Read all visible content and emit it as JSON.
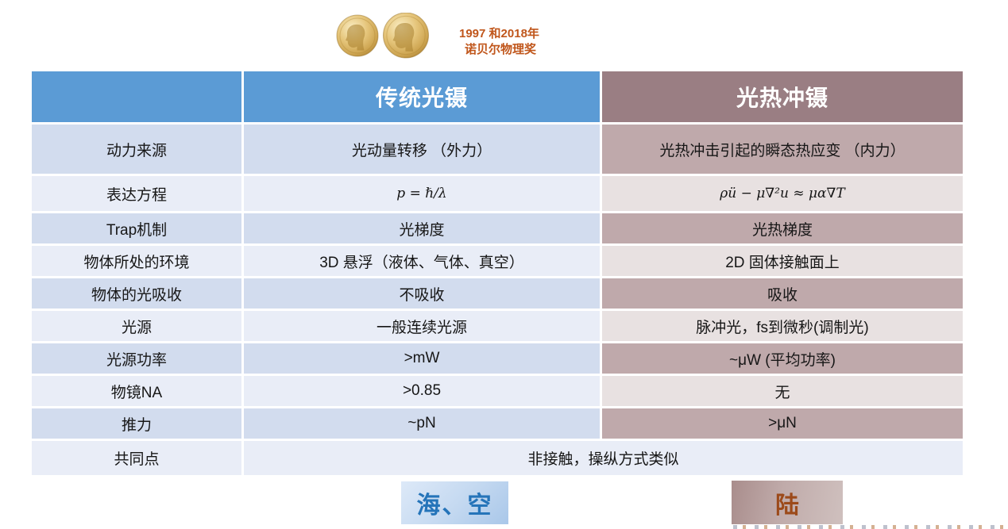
{
  "badge": {
    "caption_line1": "1997 和2018年",
    "caption_line2": "诺贝尔物理奖",
    "medal_icon": "nobel-medal",
    "caption_color": "#C0561B"
  },
  "table": {
    "columns": [
      "",
      "传统光镊",
      "光热冲镊"
    ],
    "rows": [
      {
        "label": "动力来源",
        "traditional": "光动量转移 （外力）",
        "photothermal": "光热冲击引起的瞬态热应变 （内力）"
      },
      {
        "label": "表达方程",
        "traditional": "p = ℏ/λ",
        "photothermal": "ρü − μ∇²u ≈ μα∇T",
        "math": true
      },
      {
        "label": "Trap机制",
        "traditional": "光梯度",
        "photothermal": "光热梯度"
      },
      {
        "label": "物体所处的环境",
        "traditional": "3D 悬浮（液体、气体、真空）",
        "photothermal": "2D 固体接触面上"
      },
      {
        "label": "物体的光吸收",
        "traditional": "不吸收",
        "photothermal": "吸收"
      },
      {
        "label": "光源",
        "traditional": "一般连续光源",
        "photothermal": "脉冲光，fs到微秒(调制光)"
      },
      {
        "label": "光源功率",
        "traditional": ">mW",
        "photothermal": "~μW (平均功率)"
      },
      {
        "label": "物镜NA",
        "traditional": ">0.85",
        "photothermal": "无"
      },
      {
        "label": "推力",
        "traditional": "~pN",
        "photothermal": ">μN"
      }
    ],
    "merged_row": {
      "label": "共同点",
      "value": "非接触，操纵方式类似"
    }
  },
  "footer": {
    "sea_air_label": "海、空",
    "land_label": "陆",
    "sea_air_color": "#2574B9",
    "land_color": "#9C4A1A"
  },
  "colors": {
    "header_blue": "#5B9BD5",
    "header_mauve": "#9A7E83",
    "band_blue_dark": "#D2DCEE",
    "band_blue_light": "#E9EDF7",
    "band_mauve_dark": "#BFA9AB",
    "band_mauve_light": "#E8E1E1"
  }
}
